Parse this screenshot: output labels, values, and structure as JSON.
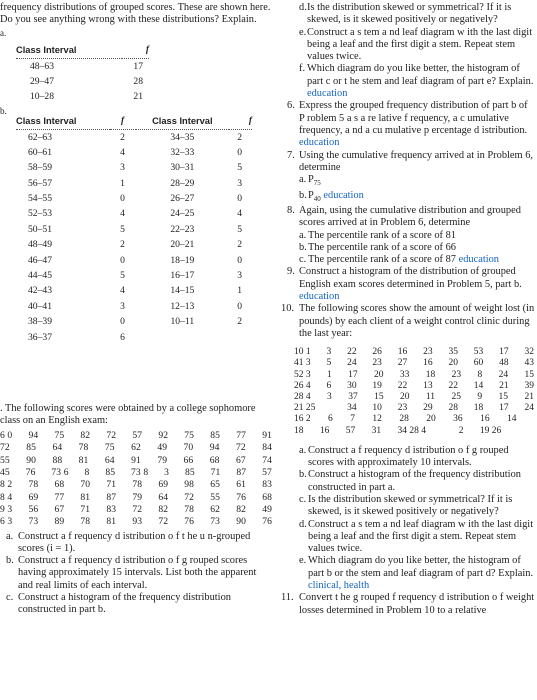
{
  "left": {
    "intro": "frequency distributions of grouped scores. These are shown here. Do you see anything wrong with these distributions? Explain.",
    "marker_a": "a.",
    "marker_b": "b.",
    "table_a": {
      "headers": [
        "Class Interval",
        "f"
      ],
      "rows": [
        [
          "48–63",
          "17"
        ],
        [
          "29–47",
          "28"
        ],
        [
          "10–28",
          "21"
        ]
      ]
    },
    "table_b": {
      "headers": [
        "Class Interval",
        "f",
        "Class Interval",
        "f"
      ],
      "left_rows": [
        [
          "62–63",
          "2"
        ],
        [
          "60–61",
          "4"
        ],
        [
          "58–59",
          "3"
        ],
        [
          "56–57",
          "1"
        ],
        [
          "54–55",
          "0"
        ],
        [
          "52–53",
          "4"
        ],
        [
          "50–51",
          "5"
        ],
        [
          "48–49",
          "2"
        ],
        [
          "46–47",
          "0"
        ],
        [
          "44–45",
          "5"
        ],
        [
          "42–43",
          "4"
        ],
        [
          "40–41",
          "3"
        ],
        [
          "38–39",
          "0"
        ],
        [
          "36–37",
          "6"
        ]
      ],
      "right_rows": [
        [
          "34–35",
          "2"
        ],
        [
          "32–33",
          "0"
        ],
        [
          "30–31",
          "5"
        ],
        [
          "28–29",
          "3"
        ],
        [
          "26–27",
          "0"
        ],
        [
          "24–25",
          "4"
        ],
        [
          "22–23",
          "5"
        ],
        [
          "20–21",
          "2"
        ],
        [
          "18–19",
          "0"
        ],
        [
          "16–17",
          "3"
        ],
        [
          "14–15",
          "1"
        ],
        [
          "12–13",
          "0"
        ],
        [
          "10–11",
          "2"
        ]
      ]
    },
    "q5_text": ". The following scores were obtained by a college sophomore class on an English exam:",
    "score_rows": [
      [
        "6 0",
        "94",
        "75",
        "82",
        "72",
        "57",
        "92",
        "75",
        "85",
        "77",
        "91"
      ],
      [
        "72",
        "85",
        "64",
        "78",
        "75",
        "62",
        "49",
        "70",
        "94",
        "72",
        "84"
      ],
      [
        "55",
        "90",
        "88",
        "81",
        "64",
        "91",
        "79",
        "66",
        "68",
        "67",
        "74"
      ],
      [
        "45",
        "76",
        "73 6",
        "8",
        "85",
        "73 8",
        "3",
        "85",
        "71",
        "87",
        "57"
      ],
      [
        "8 2",
        "78",
        "68",
        "70",
        "71",
        "78",
        "69",
        "98",
        "65",
        "61",
        "83"
      ],
      [
        "8 4",
        "69",
        "77",
        "81",
        "87",
        "79",
        "64",
        "72",
        "55",
        "76",
        "68"
      ],
      [
        "9 3",
        "56",
        "67",
        "71",
        "83",
        "72",
        "82",
        "78",
        "62",
        "82",
        "49"
      ],
      [
        "6 3",
        "73",
        "89",
        "78",
        "81",
        "93",
        "72",
        "76",
        "73",
        "90",
        "76"
      ]
    ],
    "q5_parts": [
      {
        "letter": "a.",
        "text": "Construct a f requency d istribution o f t he u n-grouped scores (i = 1)."
      },
      {
        "letter": "b.",
        "text": "Construct a f requency d istribution o f g rouped scores having approximately 15 intervals. List both the apparent and real limits of each interval."
      },
      {
        "letter": "c.",
        "text": "Construct a histogram of the frequency distribution constructed in part b."
      }
    ]
  },
  "right": {
    "top_parts": [
      {
        "letter": "d.",
        "text": "Is the distribution skewed or symmetrical? If it is skewed, is it skewed positively or negatively?"
      },
      {
        "letter": "e.",
        "text": "Construct a s tem a nd leaf diagram w ith the last digit being a leaf and the first digit a stem. Repeat stem values twice."
      },
      {
        "letter": "f.",
        "text": "Which diagram do you like better, the histogram of part c or t he stem and leaf diagram of part e? Explain.",
        "tag": "education"
      }
    ],
    "q6": {
      "num": "6.",
      "text": "Express the grouped frequency distribution of part b of P roblem 5 a s a re lative f requency, a c umulative frequency, a nd a cu mulative p ercentage d istribution.",
      "tag": "education"
    },
    "q7": {
      "num": "7.",
      "text": "Using the cumulative frequency arrived at in Problem 6, determine",
      "parts": [
        {
          "letter": "a.",
          "text": "P",
          "sub": "75"
        },
        {
          "letter": "b.",
          "text": "P",
          "sub": "40",
          "tag": "education"
        }
      ]
    },
    "q8": {
      "num": "8.",
      "text": "Again, using the cumulative distribution and grouped scores arrived at in Problem 6, determine",
      "parts": [
        {
          "letter": "a.",
          "text": "The percentile rank of a score of 81"
        },
        {
          "letter": "b.",
          "text": "The percentile rank of a score of 66"
        },
        {
          "letter": "c.",
          "text": "The percentile rank of a score of 87",
          "tag": "education"
        }
      ]
    },
    "q9": {
      "num": "9.",
      "text": "Construct a histogram of the distribution of grouped English exam scores determined in Problem 5, part b.",
      "tag": "education"
    },
    "q10": {
      "num": "10.",
      "text": "The following scores show the amount of weight lost (in pounds) by each client of a weight control clinic during the last year:"
    },
    "weight_rows": [
      [
        "10 1",
        "3",
        "22",
        "26",
        "16",
        "23",
        "35",
        "53",
        "17",
        "32"
      ],
      [
        "41 3",
        "5",
        "24",
        "23",
        "27",
        "16",
        "20",
        "60",
        "48",
        "43"
      ],
      [
        "52 3",
        "1",
        "17",
        "20",
        "33",
        "18",
        "23",
        "8",
        "24",
        "15"
      ],
      [
        "26 4",
        "6",
        "30",
        "19",
        "22",
        "13",
        "22",
        "14",
        "21",
        "39"
      ],
      [
        "28 4",
        "3",
        "37",
        "15",
        "20",
        "11",
        "25",
        "9",
        "15",
        "21"
      ],
      [
        "21 25",
        "",
        "34",
        "10",
        "23",
        "29",
        "28",
        "18",
        "17",
        "24"
      ],
      [
        "16 2",
        "6",
        "7",
        "12",
        "28",
        "20",
        "36",
        "16",
        "14",
        ""
      ],
      [
        "18",
        "16",
        "57",
        "31",
        "34 28 4",
        "",
        "2",
        "19 26",
        "",
        ""
      ]
    ],
    "q10_parts": [
      {
        "letter": "a.",
        "text": "Construct a f requency d istribution o f g rouped scores with approximately 10 intervals."
      },
      {
        "letter": "b.",
        "text": "Construct a histogram of the frequency distribution constructed in part a."
      },
      {
        "letter": "c.",
        "text": "Is the distribution skewed or symmetrical? If it is skewed, is it skewed positively or negatively?"
      },
      {
        "letter": "d.",
        "text": "Construct a s tem a nd leaf diagram w ith the last digit being a leaf and the first digit a stem. Repeat stem values twice."
      },
      {
        "letter": "e.",
        "text": "Which diagram do you like better, the histogram of part b or the stem and leaf diagram of part d? Explain.",
        "tag": "clinical, health"
      }
    ],
    "q11": {
      "num": "11.",
      "text": "Convert t he g rouped f requency d istribution o f weight losses determined in Problem 10 to a relative"
    }
  }
}
